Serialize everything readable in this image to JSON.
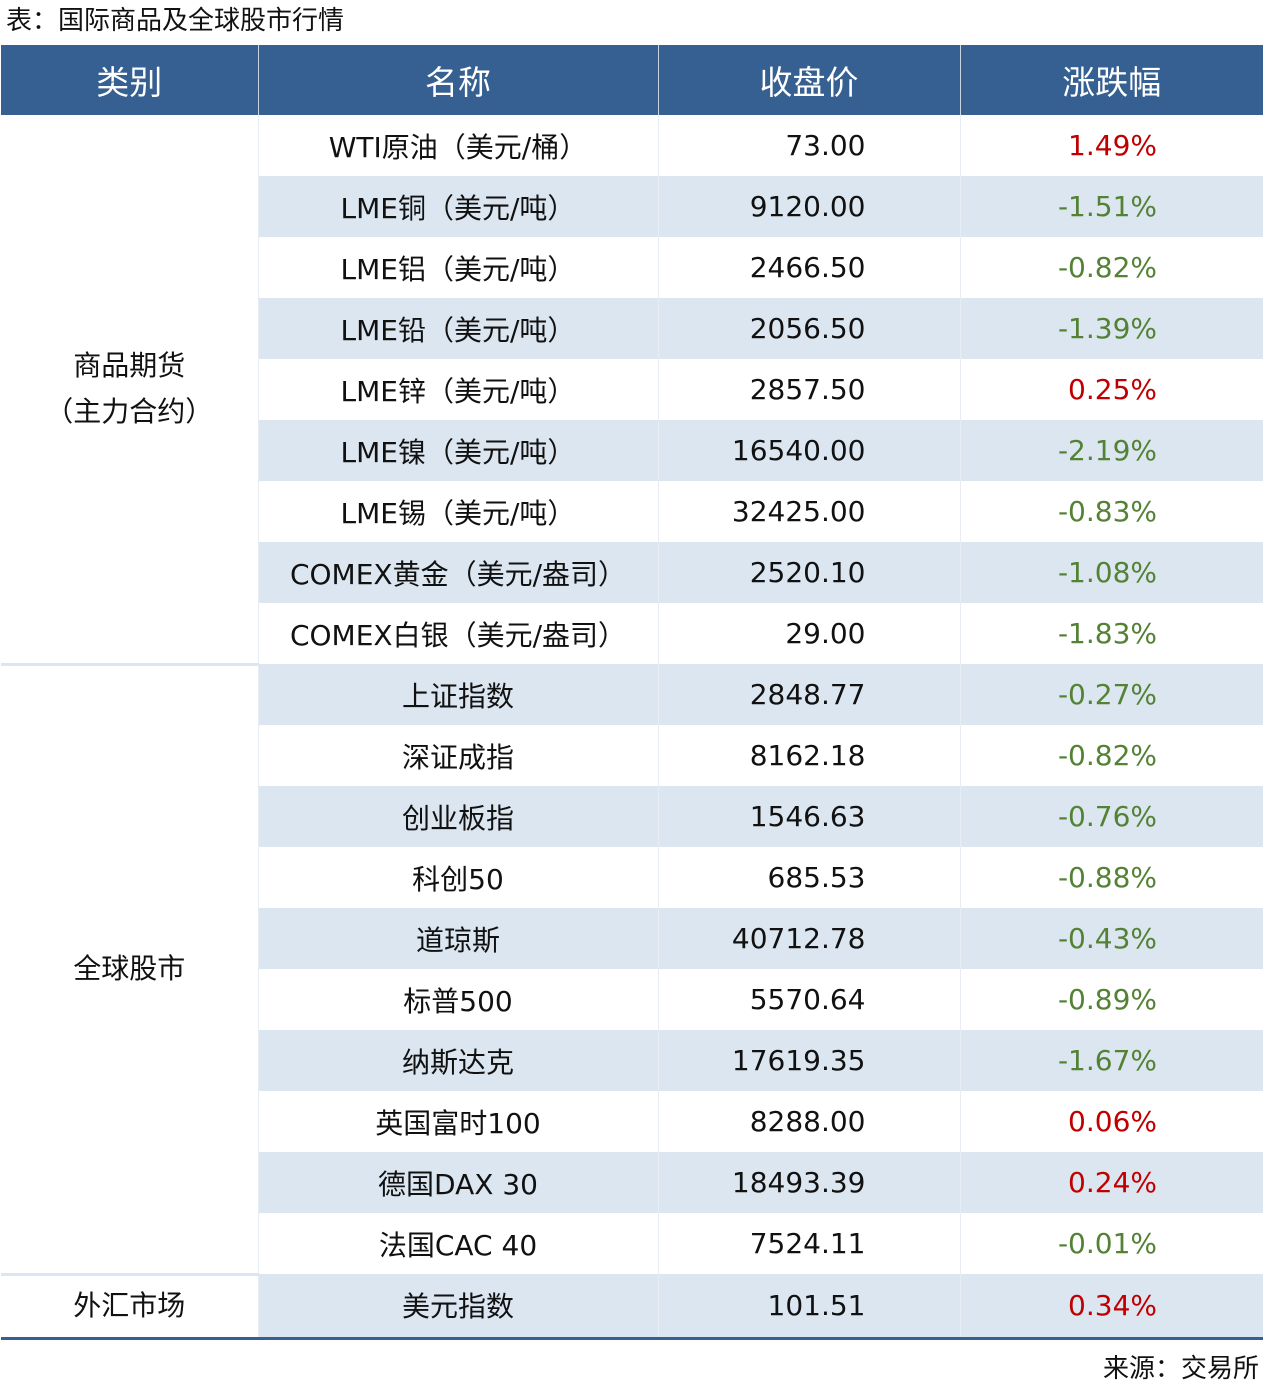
{
  "title": "表：国际商品及全球股市行情",
  "headers": [
    "类别",
    "名称",
    "收盘价",
    "涨跌幅"
  ],
  "groups": [
    {
      "category": "商品期货\n（主力合约）",
      "rows": [
        {
          "name": "WTI原油（美元/桶）",
          "price": "73.00",
          "change": "1.49%"
        },
        {
          "name": "LME铜（美元/吨）",
          "price": "9120.00",
          "change": "-1.51%"
        },
        {
          "name": "LME铝（美元/吨）",
          "price": "2466.50",
          "change": "-0.82%"
        },
        {
          "name": "LME铅（美元/吨）",
          "price": "2056.50",
          "change": "-1.39%"
        },
        {
          "name": "LME锌（美元/吨）",
          "price": "2857.50",
          "change": "0.25%"
        },
        {
          "name": "LME镍（美元/吨）",
          "price": "16540.00",
          "change": "-2.19%"
        },
        {
          "name": "LME锡（美元/吨）",
          "price": "32425.00",
          "change": "-0.83%"
        },
        {
          "name": "COMEX黄金（美元/盎司）",
          "price": "2520.10",
          "change": "-1.08%"
        },
        {
          "name": "COMEX白银（美元/盎司）",
          "price": "29.00",
          "change": "-1.83%"
        }
      ]
    },
    {
      "category": "全球股市",
      "rows": [
        {
          "name": "上证指数",
          "price": "2848.77",
          "change": "-0.27%"
        },
        {
          "name": "深证成指",
          "price": "8162.18",
          "change": "-0.82%"
        },
        {
          "name": "创业板指",
          "price": "1546.63",
          "change": "-0.76%"
        },
        {
          "name": "科创50",
          "price": "685.53",
          "change": "-0.88%"
        },
        {
          "name": "道琼斯",
          "price": "40712.78",
          "change": "-0.43%"
        },
        {
          "name": "标普500",
          "price": "5570.64",
          "change": "-0.89%"
        },
        {
          "name": "纳斯达克",
          "price": "17619.35",
          "change": "-1.67%"
        },
        {
          "name": "英国富时100",
          "price": "8288.00",
          "change": "0.06%"
        },
        {
          "name": "德国DAX 30",
          "price": "18493.39",
          "change": "0.24%"
        },
        {
          "name": "法国CAC 40",
          "price": "7524.11",
          "change": "-0.01%"
        }
      ]
    },
    {
      "category": "外汇市场",
      "rows": [
        {
          "name": "美元指数",
          "price": "101.51",
          "change": "0.34%"
        }
      ]
    }
  ],
  "colors": {
    "header_bg": "#376092",
    "row_shade": "#dce6f1",
    "up": "#c00000",
    "down": "#548235"
  },
  "source": "来源：交易所"
}
